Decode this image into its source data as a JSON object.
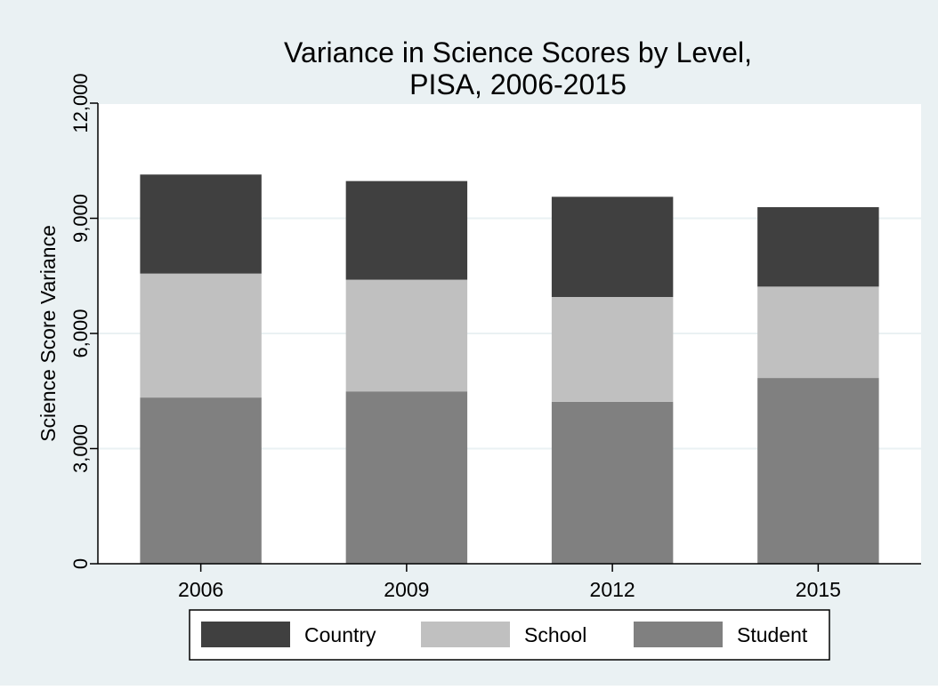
{
  "colors": {
    "background": "#ffffff",
    "outer_panel": "#eaf1f3",
    "plot_area": "#ffffff",
    "gridline": "#eaf1f3",
    "axis": "#000000"
  },
  "chart_data": {
    "type": "bar",
    "stacked": true,
    "title": "Variance in Science Scores by Level,",
    "subtitle": "PISA, 2006-2015",
    "xlabel": "",
    "ylabel": "Science Score Variance",
    "categories": [
      "2006",
      "2009",
      "2012",
      "2015"
    ],
    "ylim": [
      0,
      12000
    ],
    "yticks": [
      0,
      3000,
      6000,
      9000,
      12000
    ],
    "ytick_labels": [
      "0",
      "3,000",
      "6,000",
      "9,000",
      "12,000"
    ],
    "grid": true,
    "legend_position": "bottom",
    "series": [
      {
        "name": "Student",
        "color": "#808080",
        "values": [
          4330,
          4490,
          4220,
          4840
        ]
      },
      {
        "name": "School",
        "color": "#c0c0c0",
        "values": [
          3230,
          2910,
          2730,
          2380
        ]
      },
      {
        "name": "Country",
        "color": "#404040",
        "values": [
          2580,
          2570,
          2610,
          2070
        ]
      }
    ],
    "legend_order": [
      "Country",
      "School",
      "Student"
    ]
  }
}
